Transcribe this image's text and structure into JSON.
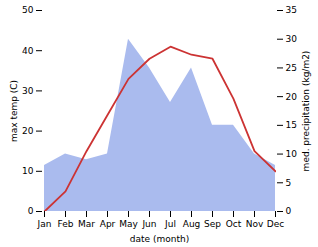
{
  "chart_data": {
    "type": "line",
    "xlabel": "date (month)",
    "ylabel": "max temp (C)",
    "y2label": "med. precipitation (kg/m2)",
    "categories": [
      "Jan",
      "Feb",
      "Mar",
      "Apr",
      "May",
      "Jun",
      "Jul",
      "Aug",
      "Sep",
      "Oct",
      "Nov",
      "Dec"
    ],
    "series": [
      {
        "type": "area",
        "axis": "y2",
        "color": "#aabbee",
        "values": [
          8,
          10,
          9,
          10,
          30,
          25,
          19,
          25,
          15,
          15,
          10,
          8
        ]
      },
      {
        "type": "line",
        "color": "#cc3333",
        "values": [
          0,
          5,
          15,
          24,
          33,
          38,
          41,
          39,
          38,
          28,
          15,
          10
        ]
      }
    ],
    "ylim": [
      0,
      50
    ],
    "yticks": [
      0,
      10,
      20,
      30,
      40,
      50
    ],
    "y2lim": [
      0,
      35
    ],
    "y2ticks": [
      0,
      5,
      10,
      15,
      20,
      25,
      30,
      35
    ],
    "grid": false
  }
}
